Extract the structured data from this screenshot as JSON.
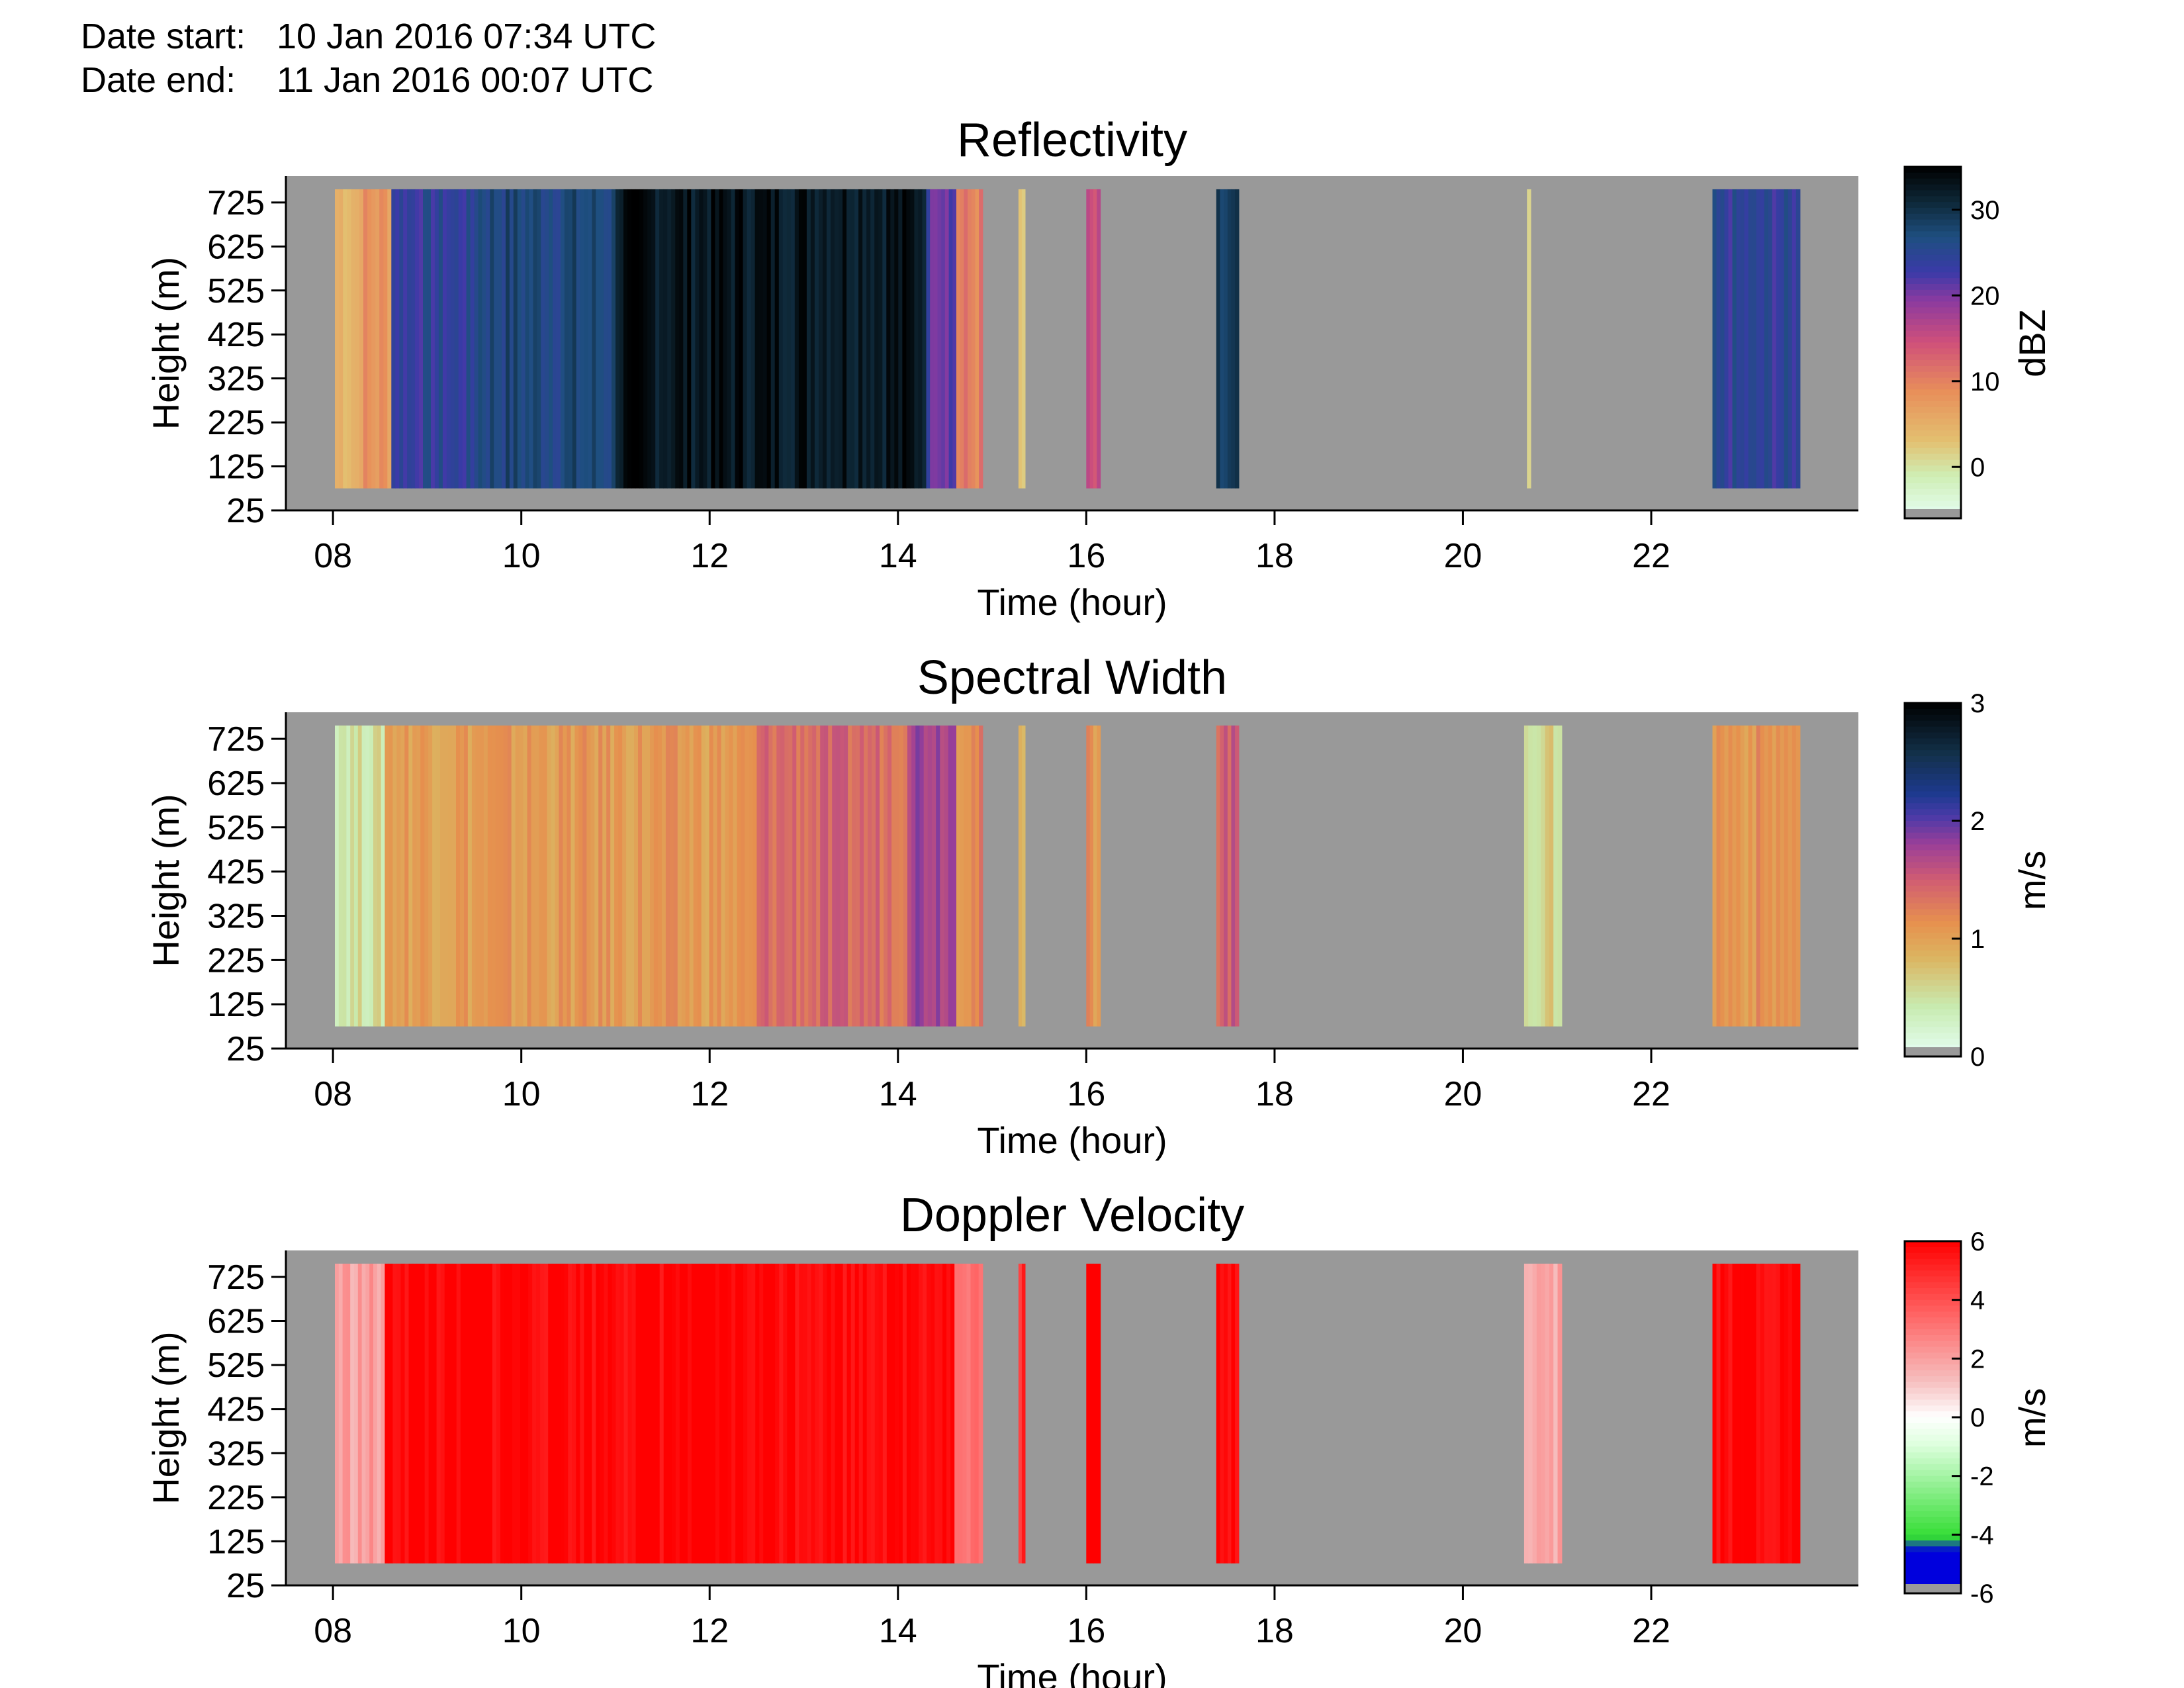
{
  "header": {
    "start_label": "Date start:",
    "start_value": "10 Jan 2016 07:34 UTC",
    "end_label": "Date end:",
    "end_value": "11 Jan 2016 00:07 UTC"
  },
  "colors": {
    "background_missing": "#999999",
    "axis": "#000000"
  },
  "chart_data": [
    {
      "type": "heatmap",
      "title": "Reflectivity",
      "xlabel": "Time (hour)",
      "ylabel": "Height (m)",
      "xlim": [
        7.5,
        24.2
      ],
      "ylim": [
        25,
        785
      ],
      "xticks": [
        "08",
        "10",
        "12",
        "14",
        "16",
        "18",
        "20",
        "22"
      ],
      "xtick_values": [
        8,
        10,
        12,
        14,
        16,
        18,
        20,
        22
      ],
      "yticks": [
        "25",
        "125",
        "225",
        "325",
        "425",
        "525",
        "625",
        "725"
      ],
      "ytick_values": [
        25,
        125,
        225,
        325,
        425,
        525,
        625,
        725
      ],
      "data_height_range": [
        75,
        755
      ],
      "colorbar": {
        "label": "dBZ",
        "range": [
          -6,
          35
        ],
        "ticks": [
          "0",
          "10",
          "20",
          "30"
        ],
        "tick_values": [
          0,
          10,
          20,
          30
        ]
      },
      "echo_intervals": [
        {
          "start": 8.02,
          "end": 8.28,
          "value": 5
        },
        {
          "start": 8.28,
          "end": 8.62,
          "value": 8
        },
        {
          "start": 8.62,
          "end": 9.5,
          "value": 24
        },
        {
          "start": 9.5,
          "end": 11.0,
          "value": 27
        },
        {
          "start": 11.0,
          "end": 14.3,
          "value": 33
        },
        {
          "start": 14.3,
          "end": 14.62,
          "value": 22
        },
        {
          "start": 14.62,
          "end": 14.9,
          "value": 10
        },
        {
          "start": 15.28,
          "end": 15.35,
          "value": 2
        },
        {
          "start": 16.0,
          "end": 16.15,
          "value": 14
        },
        {
          "start": 17.38,
          "end": 17.62,
          "value": 28
        },
        {
          "start": 20.68,
          "end": 20.72,
          "value": 1
        },
        {
          "start": 22.65,
          "end": 23.58,
          "value": 24
        }
      ]
    },
    {
      "type": "heatmap",
      "title": "Spectral Width",
      "xlabel": "Time (hour)",
      "ylabel": "Height (m)",
      "xlim": [
        7.5,
        24.2
      ],
      "ylim": [
        25,
        785
      ],
      "xticks": [
        "08",
        "10",
        "12",
        "14",
        "16",
        "18",
        "20",
        "22"
      ],
      "xtick_values": [
        8,
        10,
        12,
        14,
        16,
        18,
        20,
        22
      ],
      "yticks": [
        "25",
        "125",
        "225",
        "325",
        "425",
        "525",
        "625",
        "725"
      ],
      "ytick_values": [
        25,
        125,
        225,
        325,
        425,
        525,
        625,
        725
      ],
      "data_height_range": [
        75,
        755
      ],
      "colorbar": {
        "label": "m/s",
        "range": [
          0,
          3
        ],
        "ticks": [
          "0",
          "1",
          "2",
          "3"
        ],
        "tick_values": [
          0,
          1,
          2,
          3
        ]
      },
      "echo_intervals": [
        {
          "start": 8.02,
          "end": 8.55,
          "value": 0.5
        },
        {
          "start": 8.55,
          "end": 12.5,
          "value": 1.05
        },
        {
          "start": 12.5,
          "end": 14.1,
          "value": 1.4
        },
        {
          "start": 14.1,
          "end": 14.62,
          "value": 1.8
        },
        {
          "start": 14.62,
          "end": 14.9,
          "value": 1.2
        },
        {
          "start": 15.28,
          "end": 15.35,
          "value": 0.8
        },
        {
          "start": 16.0,
          "end": 16.15,
          "value": 1.1
        },
        {
          "start": 17.38,
          "end": 17.62,
          "value": 1.5
        },
        {
          "start": 20.65,
          "end": 21.05,
          "value": 0.6
        },
        {
          "start": 22.65,
          "end": 23.58,
          "value": 1.1
        }
      ]
    },
    {
      "type": "heatmap",
      "title": "Doppler Velocity",
      "xlabel": "Time (hour)",
      "ylabel": "Height (m)",
      "xlim": [
        7.5,
        24.2
      ],
      "ylim": [
        25,
        785
      ],
      "xticks": [
        "08",
        "10",
        "12",
        "14",
        "16",
        "18",
        "20",
        "22"
      ],
      "xtick_values": [
        8,
        10,
        12,
        14,
        16,
        18,
        20,
        22
      ],
      "yticks": [
        "25",
        "125",
        "225",
        "325",
        "425",
        "525",
        "625",
        "725"
      ],
      "ytick_values": [
        25,
        125,
        225,
        325,
        425,
        525,
        625,
        725
      ],
      "data_height_range": [
        75,
        755
      ],
      "colorbar": {
        "label": "m/s",
        "range": [
          -6,
          6
        ],
        "ticks": [
          "-6",
          "-4",
          "-2",
          "0",
          "2",
          "4",
          "6"
        ],
        "tick_values": [
          -6,
          -4,
          -2,
          0,
          2,
          4,
          6
        ]
      },
      "echo_intervals": [
        {
          "start": 8.02,
          "end": 8.55,
          "value": 2
        },
        {
          "start": 8.55,
          "end": 14.6,
          "value": 6
        },
        {
          "start": 14.6,
          "end": 14.9,
          "value": 3
        },
        {
          "start": 15.28,
          "end": 15.35,
          "value": 5
        },
        {
          "start": 16.0,
          "end": 16.15,
          "value": 6
        },
        {
          "start": 17.38,
          "end": 17.62,
          "value": 6
        },
        {
          "start": 20.65,
          "end": 21.05,
          "value": 2
        },
        {
          "start": 22.65,
          "end": 23.58,
          "value": 6
        }
      ]
    }
  ]
}
